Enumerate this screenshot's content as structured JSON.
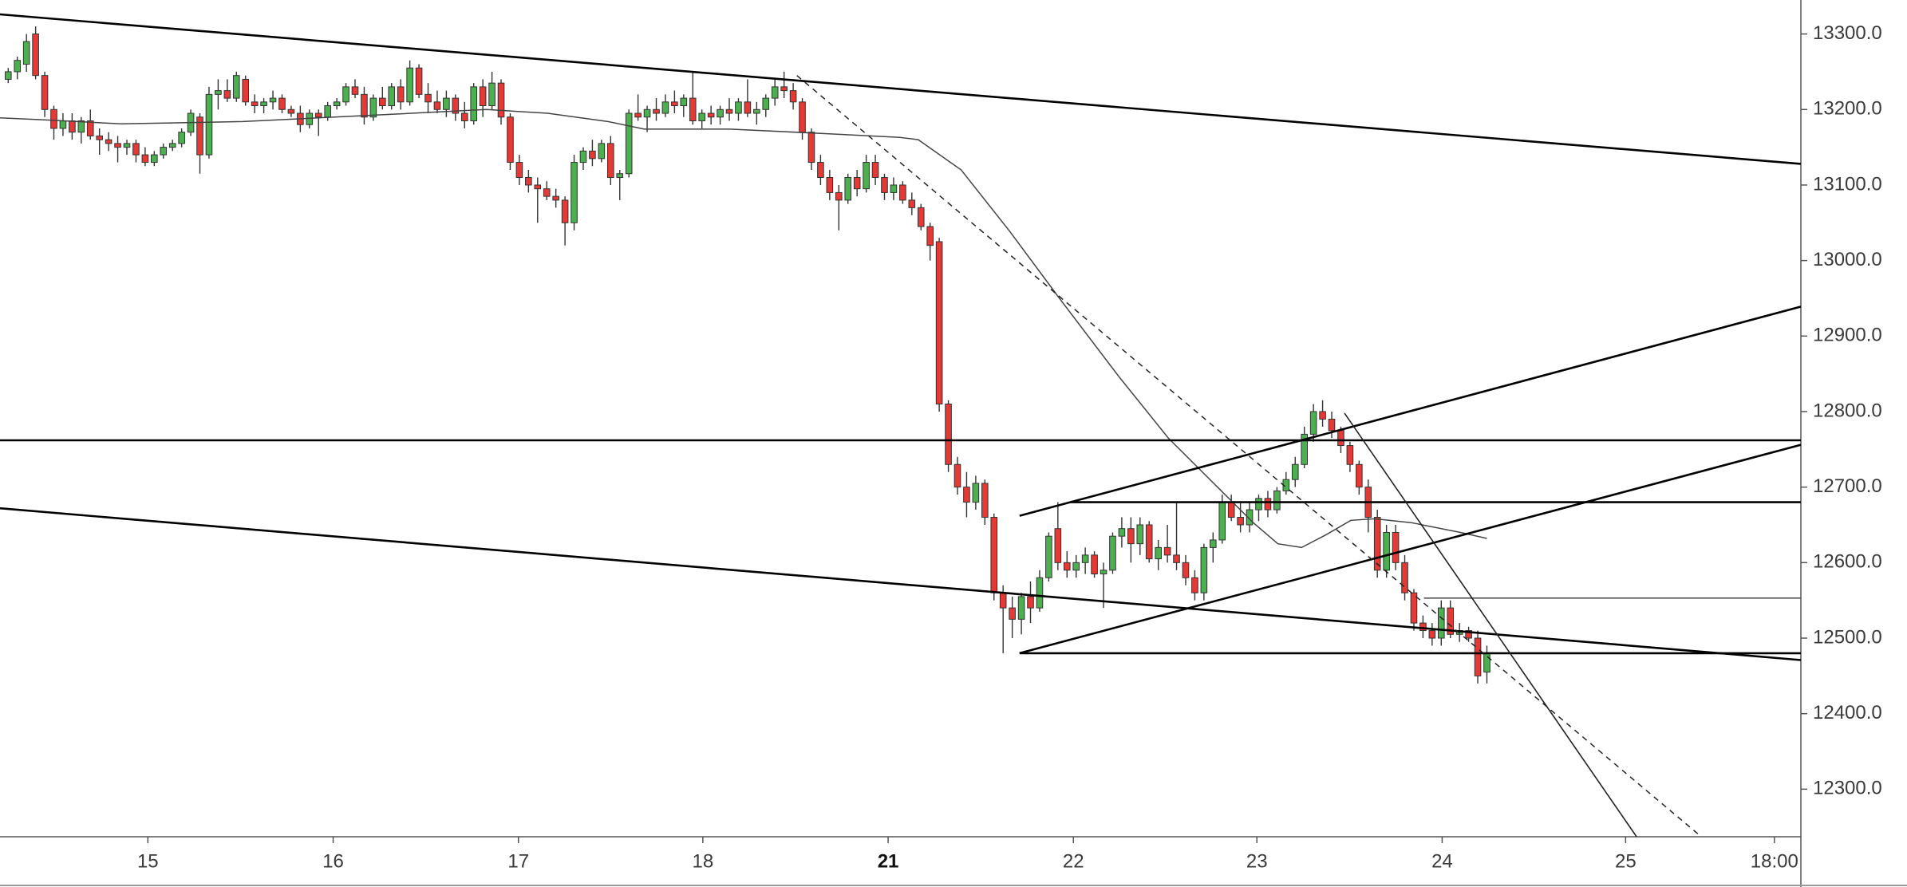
{
  "chart_data": {
    "type": "candlestick",
    "up_color": "#4caf50",
    "down_color": "#e53935",
    "xlim": [
      -0.9,
      196.4
    ],
    "ylim": [
      12237,
      13345
    ],
    "yticks": [
      {
        "value": 12300,
        "label": "12300.0"
      },
      {
        "value": 12400,
        "label": "12400.0"
      },
      {
        "value": 12500,
        "label": "12500.0"
      },
      {
        "value": 12600,
        "label": "12600.0"
      },
      {
        "value": 12700,
        "label": "12700.0"
      },
      {
        "value": 12800,
        "label": "12800.0"
      },
      {
        "value": 12900,
        "label": "12900.0"
      },
      {
        "value": 13000,
        "label": "13000.0"
      },
      {
        "value": 13100,
        "label": "13100.0"
      },
      {
        "value": 13200,
        "label": "13200.0"
      },
      {
        "value": 13300,
        "label": "13300.0"
      }
    ],
    "xticks": [
      {
        "value": 15.3,
        "label": "15"
      },
      {
        "value": 35.6,
        "label": "16"
      },
      {
        "value": 55.9,
        "label": "17"
      },
      {
        "value": 76.1,
        "label": "18"
      },
      {
        "value": 96.4,
        "label": "21"
      },
      {
        "value": 116.7,
        "label": "22"
      },
      {
        "value": 136.8,
        "label": "23"
      },
      {
        "value": 157.1,
        "label": "24"
      },
      {
        "value": 177.2,
        "label": "25"
      },
      {
        "value": 193.5,
        "label": "18:00"
      }
    ],
    "candles": [
      [
        13240,
        13255,
        13235,
        13250
      ],
      [
        13250,
        13270,
        13240,
        13265
      ],
      [
        13260,
        13300,
        13250,
        13290
      ],
      [
        13300,
        13310,
        13240,
        13245
      ],
      [
        13245,
        13250,
        13190,
        13200
      ],
      [
        13200,
        13205,
        13160,
        13175
      ],
      [
        13175,
        13195,
        13165,
        13185
      ],
      [
        13185,
        13195,
        13160,
        13170
      ],
      [
        13170,
        13190,
        13155,
        13185
      ],
      [
        13185,
        13200,
        13160,
        13165
      ],
      [
        13165,
        13175,
        13140,
        13160
      ],
      [
        13160,
        13170,
        13145,
        13155
      ],
      [
        13155,
        13165,
        13130,
        13150
      ],
      [
        13150,
        13160,
        13140,
        13155
      ],
      [
        13155,
        13160,
        13130,
        13140
      ],
      [
        13140,
        13150,
        13125,
        13130
      ],
      [
        13130,
        13145,
        13125,
        13140
      ],
      [
        13140,
        13155,
        13135,
        13150
      ],
      [
        13150,
        13160,
        13145,
        13155
      ],
      [
        13155,
        13175,
        13150,
        13170
      ],
      [
        13170,
        13200,
        13165,
        13195
      ],
      [
        13190,
        13195,
        13115,
        13140
      ],
      [
        13140,
        13230,
        13135,
        13220
      ],
      [
        13220,
        13240,
        13200,
        13225
      ],
      [
        13225,
        13240,
        13210,
        13215
      ],
      [
        13215,
        13250,
        13210,
        13245
      ],
      [
        13240,
        13245,
        13205,
        13210
      ],
      [
        13210,
        13220,
        13195,
        13205
      ],
      [
        13205,
        13215,
        13195,
        13210
      ],
      [
        13210,
        13225,
        13200,
        13215
      ],
      [
        13215,
        13220,
        13195,
        13200
      ],
      [
        13200,
        13205,
        13190,
        13195
      ],
      [
        13195,
        13205,
        13170,
        13180
      ],
      [
        13180,
        13200,
        13175,
        13195
      ],
      [
        13195,
        13200,
        13165,
        13190
      ],
      [
        13190,
        13210,
        13185,
        13205
      ],
      [
        13205,
        13215,
        13200,
        13210
      ],
      [
        13210,
        13235,
        13205,
        13230
      ],
      [
        13230,
        13240,
        13215,
        13220
      ],
      [
        13220,
        13230,
        13180,
        13190
      ],
      [
        13190,
        13220,
        13185,
        13215
      ],
      [
        13215,
        13230,
        13200,
        13205
      ],
      [
        13205,
        13235,
        13200,
        13230
      ],
      [
        13230,
        13240,
        13200,
        13210
      ],
      [
        13210,
        13265,
        13205,
        13255
      ],
      [
        13255,
        13260,
        13215,
        13220
      ],
      [
        13220,
        13235,
        13195,
        13210
      ],
      [
        13210,
        13225,
        13195,
        13200
      ],
      [
        13200,
        13225,
        13190,
        13215
      ],
      [
        13215,
        13220,
        13185,
        13195
      ],
      [
        13195,
        13210,
        13175,
        13185
      ],
      [
        13185,
        13235,
        13180,
        13230
      ],
      [
        13230,
        13240,
        13190,
        13205
      ],
      [
        13205,
        13250,
        13200,
        13235
      ],
      [
        13235,
        13240,
        13180,
        13190
      ],
      [
        13190,
        13195,
        13120,
        13130
      ],
      [
        13130,
        13140,
        13100,
        13110
      ],
      [
        13110,
        13120,
        13090,
        13100
      ],
      [
        13100,
        13110,
        13050,
        13095
      ],
      [
        13095,
        13105,
        13080,
        13085
      ],
      [
        13085,
        13095,
        13070,
        13080
      ],
      [
        13080,
        13085,
        13020,
        13050
      ],
      [
        13050,
        13140,
        13040,
        13130
      ],
      [
        13130,
        13150,
        13120,
        13145
      ],
      [
        13145,
        13160,
        13125,
        13135
      ],
      [
        13135,
        13160,
        13130,
        13155
      ],
      [
        13155,
        13165,
        13100,
        13110
      ],
      [
        13110,
        13120,
        13080,
        13115
      ],
      [
        13115,
        13200,
        13110,
        13195
      ],
      [
        13195,
        13220,
        13185,
        13190
      ],
      [
        13190,
        13205,
        13170,
        13200
      ],
      [
        13200,
        13215,
        13185,
        13195
      ],
      [
        13195,
        13220,
        13190,
        13210
      ],
      [
        13210,
        13225,
        13195,
        13205
      ],
      [
        13205,
        13220,
        13190,
        13215
      ],
      [
        13215,
        13250,
        13180,
        13185
      ],
      [
        13185,
        13200,
        13175,
        13195
      ],
      [
        13195,
        13205,
        13180,
        13190
      ],
      [
        13190,
        13205,
        13180,
        13200
      ],
      [
        13200,
        13215,
        13185,
        13195
      ],
      [
        13195,
        13215,
        13185,
        13210
      ],
      [
        13210,
        13240,
        13190,
        13195
      ],
      [
        13195,
        13210,
        13180,
        13200
      ],
      [
        13200,
        13220,
        13190,
        13215
      ],
      [
        13215,
        13240,
        13205,
        13230
      ],
      [
        13230,
        13250,
        13215,
        13225
      ],
      [
        13225,
        13235,
        13200,
        13210
      ],
      [
        13210,
        13215,
        13160,
        13170
      ],
      [
        13170,
        13175,
        13120,
        13130
      ],
      [
        13130,
        13140,
        13100,
        13110
      ],
      [
        13110,
        13120,
        13080,
        13090
      ],
      [
        13090,
        13100,
        13040,
        13080
      ],
      [
        13080,
        13115,
        13075,
        13110
      ],
      [
        13110,
        13120,
        13085,
        13095
      ],
      [
        13095,
        13140,
        13090,
        13130
      ],
      [
        13130,
        13140,
        13100,
        13110
      ],
      [
        13110,
        13115,
        13080,
        13090
      ],
      [
        13090,
        13110,
        13080,
        13100
      ],
      [
        13100,
        13105,
        13075,
        13080
      ],
      [
        13080,
        13090,
        13060,
        13070
      ],
      [
        13070,
        13075,
        13040,
        13045
      ],
      [
        13045,
        13050,
        13000,
        13020
      ],
      [
        13025,
        13030,
        12800,
        12810
      ],
      [
        12810,
        12815,
        12720,
        12730
      ],
      [
        12730,
        12740,
        12690,
        12700
      ],
      [
        12700,
        12720,
        12660,
        12680
      ],
      [
        12680,
        12715,
        12670,
        12705
      ],
      [
        12705,
        12710,
        12650,
        12660
      ],
      [
        12660,
        12665,
        12550,
        12560
      ],
      [
        12560,
        12570,
        12480,
        12540
      ],
      [
        12540,
        12555,
        12500,
        12525
      ],
      [
        12525,
        12560,
        12505,
        12555
      ],
      [
        12555,
        12575,
        12520,
        12540
      ],
      [
        12540,
        12590,
        12535,
        12580
      ],
      [
        12580,
        12640,
        12575,
        12635
      ],
      [
        12645,
        12680,
        12590,
        12600
      ],
      [
        12600,
        12615,
        12580,
        12590
      ],
      [
        12590,
        12610,
        12580,
        12600
      ],
      [
        12600,
        12620,
        12585,
        12610
      ],
      [
        12610,
        12615,
        12580,
        12585
      ],
      [
        12585,
        12600,
        12540,
        12590
      ],
      [
        12590,
        12640,
        12585,
        12635
      ],
      [
        12635,
        12660,
        12620,
        12645
      ],
      [
        12645,
        12660,
        12600,
        12625
      ],
      [
        12625,
        12660,
        12610,
        12650
      ],
      [
        12650,
        12655,
        12600,
        12605
      ],
      [
        12605,
        12630,
        12590,
        12620
      ],
      [
        12620,
        12650,
        12600,
        12610
      ],
      [
        12610,
        12680,
        12590,
        12600
      ],
      [
        12600,
        12610,
        12570,
        12580
      ],
      [
        12580,
        12590,
        12550,
        12560
      ],
      [
        12560,
        12625,
        12550,
        12620
      ],
      [
        12620,
        12640,
        12600,
        12630
      ],
      [
        12630,
        12690,
        12625,
        12680
      ],
      [
        12680,
        12690,
        12655,
        12660
      ],
      [
        12660,
        12680,
        12640,
        12650
      ],
      [
        12650,
        12680,
        12640,
        12670
      ],
      [
        12670,
        12690,
        12655,
        12685
      ],
      [
        12685,
        12695,
        12660,
        12670
      ],
      [
        12670,
        12700,
        12665,
        12695
      ],
      [
        12695,
        12720,
        12690,
        12710
      ],
      [
        12710,
        12740,
        12700,
        12730
      ],
      [
        12730,
        12780,
        12725,
        12770
      ],
      [
        12770,
        12810,
        12760,
        12800
      ],
      [
        12800,
        12815,
        12780,
        12790
      ],
      [
        12790,
        12800,
        12765,
        12775
      ],
      [
        12775,
        12780,
        12745,
        12755
      ],
      [
        12755,
        12760,
        12720,
        12730
      ],
      [
        12730,
        12735,
        12690,
        12700
      ],
      [
        12700,
        12710,
        12640,
        12660
      ],
      [
        12660,
        12670,
        12580,
        12590
      ],
      [
        12590,
        12650,
        12580,
        12640
      ],
      [
        12640,
        12650,
        12590,
        12600
      ],
      [
        12600,
        12610,
        12550,
        12560
      ],
      [
        12560,
        12565,
        12510,
        12520
      ],
      [
        12520,
        12530,
        12500,
        12510
      ],
      [
        12510,
        12520,
        12490,
        12500
      ],
      [
        12500,
        12550,
        12490,
        12540
      ],
      [
        12540,
        12550,
        12500,
        12505
      ],
      [
        12505,
        12520,
        12495,
        12510
      ],
      [
        12510,
        12515,
        12495,
        12500
      ],
      [
        12500,
        12510,
        12440,
        12450
      ],
      [
        12455,
        12490,
        12440,
        12480
      ]
    ],
    "moving_average": {
      "color": "#444444",
      "x": [
        -0.9,
        4.4,
        12.4,
        25.7,
        39.1,
        52.4,
        59.1,
        65.7,
        69.7,
        79.1,
        89.7,
        97.7,
        99.7,
        104.4,
        109.7,
        115.1,
        121.7,
        127.1,
        132.4,
        136.4,
        139.1,
        141.7,
        144.4,
        147.1,
        149.7,
        153.7,
        159.1,
        162
      ],
      "values": [
        13189,
        13186,
        13181,
        13184,
        13192,
        13200,
        13195,
        13184,
        13174,
        13174,
        13168,
        13163,
        13160,
        13120,
        13039,
        12951,
        12846,
        12765,
        12701,
        12653,
        12625,
        12620,
        12637,
        12656,
        12658,
        12653,
        12640,
        12632
      ]
    },
    "trendlines": [
      {
        "x": [
          -0.9,
          196.4
        ],
        "values": [
          13326,
          13128
        ],
        "color": "#000000",
        "dashed": false
      },
      {
        "x": [
          -0.9,
          196.4
        ],
        "values": [
          12672,
          12471
        ],
        "color": "#000000",
        "dashed": false
      },
      {
        "x": [
          -0.9,
          196.4
        ],
        "values": [
          12762,
          12762
        ],
        "color": "#000000",
        "dashed": false
      },
      {
        "x": [
          110.8,
          196.4
        ],
        "values": [
          12662,
          12939
        ],
        "color": "#000000",
        "dashed": false
      },
      {
        "x": [
          110.8,
          196.4
        ],
        "values": [
          12480,
          12756
        ],
        "color": "#000000",
        "dashed": false
      },
      {
        "x": [
          110.8,
          196.4
        ],
        "values": [
          12480,
          12480
        ],
        "color": "#000000",
        "dashed": false
      },
      {
        "x": [
          116.4,
          196.4
        ],
        "values": [
          12680,
          12680
        ],
        "color": "#000000",
        "dashed": false
      },
      {
        "x": [
          155.1,
          196.4
        ],
        "values": [
          12553,
          12553
        ],
        "color": "#555555",
        "dashed": false
      },
      {
        "x": [
          86.4,
          185.5
        ],
        "values": [
          13245,
          12237
        ],
        "color": "#222222",
        "dashed": true
      },
      {
        "x": [
          146.4,
          178.4
        ],
        "values": [
          12798,
          12237
        ],
        "color": "#222222",
        "dashed": false
      }
    ]
  }
}
